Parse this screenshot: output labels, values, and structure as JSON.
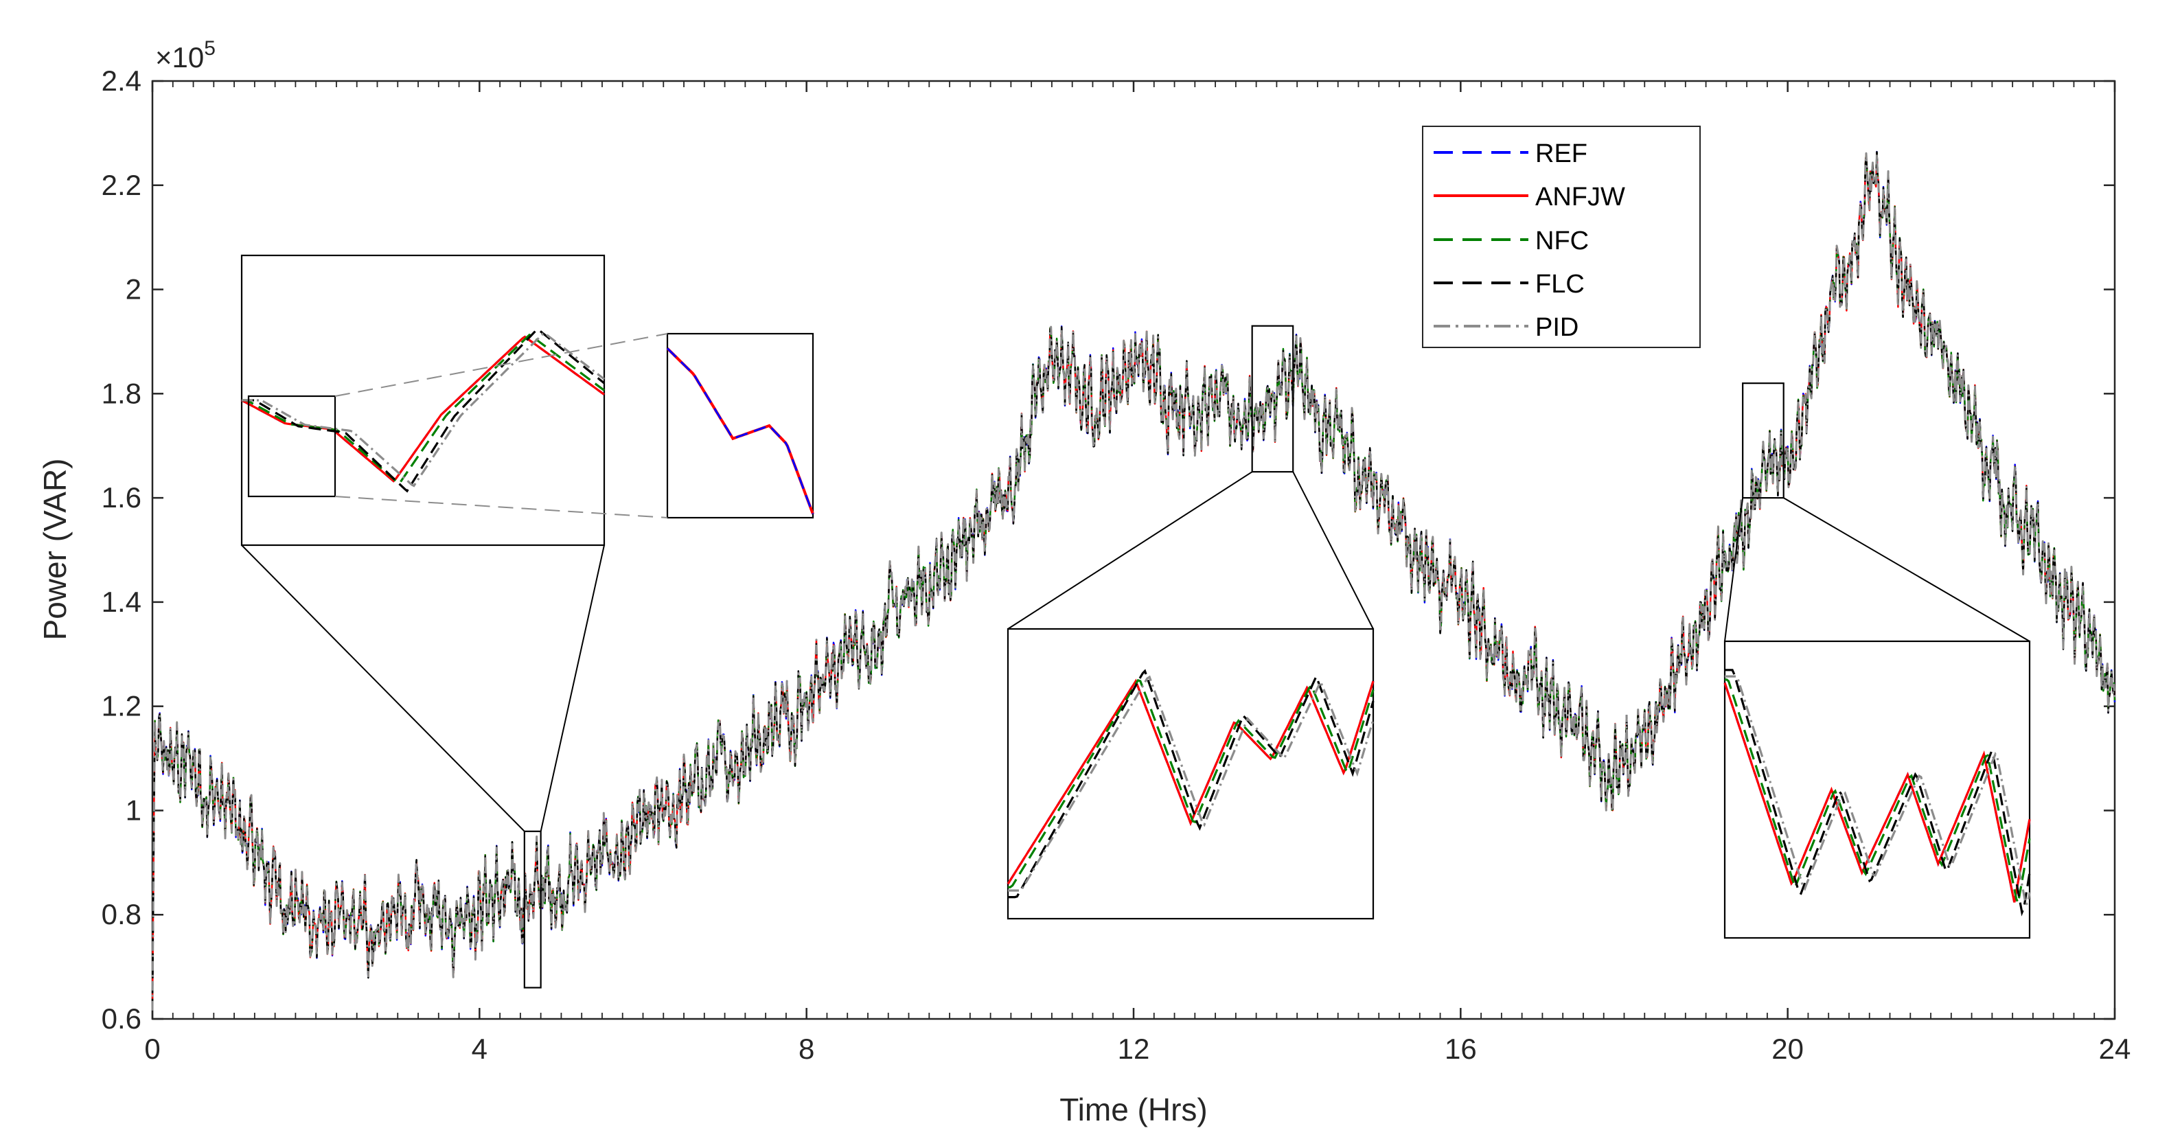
{
  "chart_data": {
    "type": "line",
    "title": "",
    "xlabel": "Time (Hrs)",
    "ylabel": "Power (VAR)",
    "y_multiplier_label": "×10",
    "y_multiplier_exponent": "5",
    "xlim": [
      0,
      24
    ],
    "ylim": [
      0.6,
      2.4
    ],
    "x_ticks": [
      0,
      4,
      8,
      12,
      16,
      20,
      24
    ],
    "x_tick_labels": [
      "0",
      "4",
      "8",
      "12",
      "16",
      "20",
      "24"
    ],
    "y_ticks": [
      0.6,
      0.8,
      1.0,
      1.2,
      1.4,
      1.6,
      1.8,
      2.0,
      2.2,
      2.4
    ],
    "y_tick_labels": [
      "0.6",
      "0.8",
      "1",
      "1.2",
      "1.4",
      "1.6",
      "1.8",
      "2",
      "2.2",
      "2.4"
    ],
    "grid": false,
    "legend_position": "top-right",
    "trend_x": [
      0,
      0.5,
      1.0,
      1.5,
      2.0,
      2.5,
      3.0,
      3.5,
      4.0,
      4.5,
      5.0,
      5.5,
      6.0,
      6.5,
      7.0,
      7.5,
      8.0,
      8.5,
      9.0,
      9.5,
      10.0,
      10.5,
      11.0,
      11.5,
      12.0,
      12.5,
      13.0,
      13.5,
      14.0,
      14.5,
      15.0,
      15.5,
      16.0,
      16.5,
      17.0,
      17.5,
      18.0,
      18.5,
      19.0,
      19.5,
      20.0,
      20.5,
      21.0,
      21.5,
      22.0,
      22.5,
      23.0,
      23.5,
      24.0
    ],
    "trend_y": [
      1.1,
      1.08,
      0.98,
      0.86,
      0.78,
      0.77,
      0.79,
      0.8,
      0.83,
      0.83,
      0.86,
      0.9,
      0.95,
      1.02,
      1.09,
      1.16,
      1.23,
      1.3,
      1.36,
      1.43,
      1.52,
      1.63,
      1.87,
      1.78,
      1.86,
      1.8,
      1.77,
      1.76,
      1.82,
      1.7,
      1.62,
      1.5,
      1.4,
      1.3,
      1.22,
      1.16,
      1.06,
      1.2,
      1.4,
      1.57,
      1.7,
      1.93,
      2.2,
      2.0,
      1.83,
      1.66,
      1.5,
      1.38,
      1.22
    ],
    "series": [
      {
        "name": "REF",
        "color": "#0000ff",
        "style": "dashed"
      },
      {
        "name": "ANFJW",
        "color": "#ff0000",
        "style": "solid"
      },
      {
        "name": "NFC",
        "color": "#008000",
        "style": "dashed"
      },
      {
        "name": "FLC",
        "color": "#000000",
        "style": "dashed"
      },
      {
        "name": "PID",
        "color": "#8c8c8c",
        "style": "dashdot"
      }
    ],
    "zoom_regions": [
      {
        "x_range": [
          4.55,
          4.75
        ],
        "y_range": [
          0.66,
          0.96
        ]
      },
      {
        "x_range": [
          13.45,
          13.95
        ],
        "y_range": [
          1.65,
          1.93
        ]
      },
      {
        "x_range": [
          19.45,
          19.95
        ],
        "y_range": [
          1.6,
          1.82
        ]
      }
    ]
  }
}
